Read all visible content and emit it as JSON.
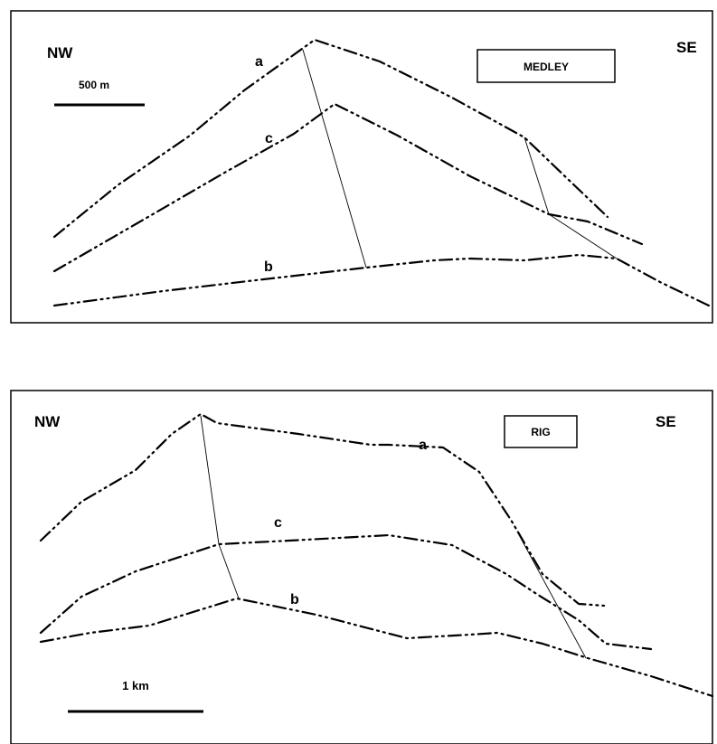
{
  "panels": [
    {
      "orientation_left": "NW",
      "orientation_right": "SE",
      "name": "MEDLEY",
      "scale_label": "500 m",
      "horizon_labels": {
        "a": "a",
        "b": "b",
        "c": "c"
      }
    },
    {
      "orientation_left": "NW",
      "orientation_right": "SE",
      "name": "RIG",
      "scale_label": "1 km",
      "horizon_labels": {
        "a": "a",
        "b": "b",
        "c": "c"
      }
    }
  ]
}
